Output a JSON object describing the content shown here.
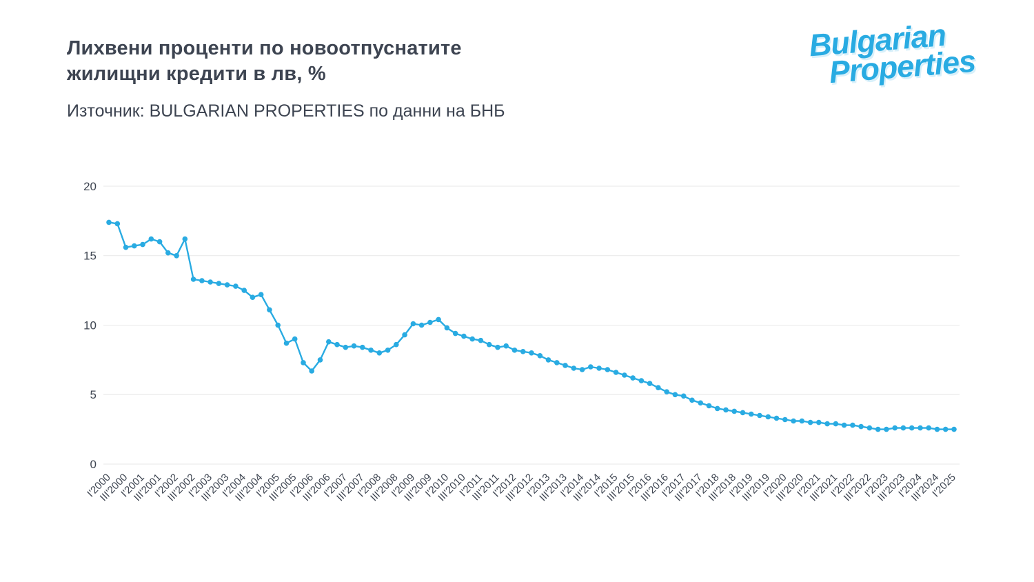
{
  "page": {
    "title_line1": "Лихвени проценти по новоотпуснатите",
    "title_line2": "жилищни кредити в лв, %",
    "source": "Източник: BULGARIAN PROPERTIES по данни на БНБ"
  },
  "logo": {
    "line1": "Bulgarian",
    "line2": "Properties",
    "color": "#29abe2"
  },
  "chart_data": {
    "type": "line",
    "title": "Лихвени проценти по новоотпуснатите жилищни кредити в лв, %",
    "xlabel": "",
    "ylabel": "",
    "ylim": [
      0,
      20
    ],
    "yticks": [
      0,
      5,
      10,
      15,
      20
    ],
    "grid": "horizontal",
    "legend": "none",
    "line_color": "#29abe2",
    "grid_color": "#e7e7e7",
    "tick_label_color": "#3f4652",
    "marker": "circle",
    "points_per_tick": 2,
    "x_tick_labels": [
      "I'2000",
      "III'2000",
      "I'2001",
      "III'2001",
      "I'2002",
      "III'2002",
      "I'2003",
      "III'2003",
      "I'2004",
      "III'2004",
      "I'2005",
      "III'2005",
      "I'2006",
      "III'2006",
      "I'2007",
      "III'2007",
      "I'2008",
      "III'2008",
      "I'2009",
      "III'2009",
      "I'2010",
      "III'2010",
      "I'2011",
      "III'2011",
      "I'2012",
      "III'2012",
      "I'2013",
      "III'2013",
      "I'2014",
      "III'2014",
      "I'2015",
      "III'2015",
      "I'2016",
      "III'2016",
      "I'2017",
      "III'2017",
      "I'2018",
      "III'2018",
      "I'2019",
      "III'2019",
      "I'2020",
      "III'2020",
      "I'2021",
      "III'2021",
      "I'2022",
      "III'2022",
      "I'2023",
      "III'2023",
      "I'2024",
      "III'2024",
      "I'2025"
    ],
    "values": [
      17.4,
      17.3,
      15.6,
      15.7,
      15.8,
      16.2,
      16.0,
      15.2,
      15.0,
      16.2,
      13.3,
      13.2,
      13.1,
      13.0,
      12.9,
      12.8,
      12.5,
      12.0,
      12.2,
      11.1,
      10.0,
      8.7,
      9.0,
      7.3,
      6.7,
      7.5,
      8.8,
      8.6,
      8.4,
      8.5,
      8.4,
      8.2,
      8.0,
      8.2,
      8.6,
      9.3,
      10.1,
      10.0,
      10.2,
      10.4,
      9.8,
      9.4,
      9.2,
      9.0,
      8.9,
      8.6,
      8.4,
      8.5,
      8.2,
      8.1,
      8.0,
      7.8,
      7.5,
      7.3,
      7.1,
      6.9,
      6.8,
      7.0,
      6.9,
      6.8,
      6.6,
      6.4,
      6.2,
      6.0,
      5.8,
      5.5,
      5.2,
      5.0,
      4.9,
      4.6,
      4.4,
      4.2,
      4.0,
      3.9,
      3.8,
      3.7,
      3.6,
      3.5,
      3.4,
      3.3,
      3.2,
      3.1,
      3.1,
      3.0,
      3.0,
      2.9,
      2.9,
      2.8,
      2.8,
      2.7,
      2.6,
      2.5,
      2.5,
      2.6,
      2.6,
      2.6,
      2.6,
      2.6,
      2.5,
      2.5,
      2.5
    ]
  }
}
